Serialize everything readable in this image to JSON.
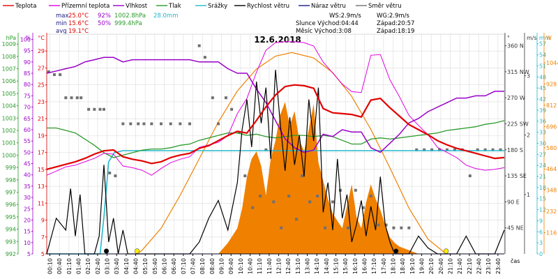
{
  "colors": {
    "temperature": "#e00000",
    "dew_point": "#e000e0",
    "humidity": "#9a00c8",
    "pressure": "#2a9a2a",
    "rain": "#22b8cc",
    "wind_speed": "#000000",
    "gust": "#1a1a8a",
    "wind_dir": "#707070",
    "solar": "#f08000",
    "grid": "#dcdcdc",
    "label_text": "#1a1a7a"
  },
  "legend": [
    {
      "id": "temp",
      "label": "Teplota",
      "color": "#e00000"
    },
    {
      "id": "dew",
      "label": "Přízemní teplota",
      "color": "#e000e0"
    },
    {
      "id": "hum",
      "label": "Vlhkost",
      "color": "#9a00c8"
    },
    {
      "id": "press",
      "label": "Tlak",
      "color": "#2a9a2a"
    },
    {
      "id": "rain",
      "label": "Srážky",
      "color": "#22b8cc"
    },
    {
      "id": "wind",
      "label": "Rychlost větru",
      "color": "#000000"
    },
    {
      "id": "gust",
      "label": "Náraz větru",
      "color": "#1a1a8a"
    },
    {
      "id": "dir",
      "label": "Směr větru",
      "color": "#707070"
    }
  ],
  "stats": {
    "max_label": "max",
    "min_label": "min",
    "avg_label": "avg",
    "max_temp": "25.0°C",
    "max_hum": "92%",
    "max_press": "1002.8hPa",
    "max_rain": "28.0mm",
    "min_temp": "15.6°C",
    "min_hum": "50%",
    "min_press": "999.4hPa",
    "avg_temp": "19.1°C"
  },
  "info": {
    "ws": "WS:2.9m/s",
    "wg": "WG:2.9m/s",
    "sun": "Slunce Východ:04:44",
    "sun_set": "Západ:20:57",
    "moon": "Měsíc  Východ:3:08",
    "moon_set": "Západ:18:19"
  },
  "title": "12.6.2018",
  "chart_data": {
    "type": "line",
    "title": "12.6.2018",
    "xlabel": "čas",
    "x_ticks": [
      "00:10",
      "00:40",
      "01:10",
      "01:40",
      "02:10",
      "02:40",
      "03:10",
      "03:40",
      "04:10",
      "04:40",
      "05:10",
      "05:40",
      "06:10",
      "06:40",
      "07:10",
      "07:40",
      "08:10",
      "08:40",
      "09:10",
      "09:40",
      "10:10",
      "10:40",
      "11:10",
      "11:40",
      "12:10",
      "12:40",
      "13:10",
      "13:40",
      "14:10",
      "14:40",
      "15:10",
      "15:40",
      "16:10",
      "16:40",
      "17:10",
      "17:40",
      "18:10",
      "18:40",
      "19:10",
      "19:40",
      "20:10",
      "20:40",
      "21:10",
      "21:40",
      "22:10",
      "22:40",
      "23:10",
      "23:40"
    ],
    "x_range_hours": [
      0,
      24
    ],
    "axes": {
      "pressure_hPa": {
        "label": "hPa",
        "ticks": [
          992,
          993,
          994,
          995,
          996,
          997,
          998,
          999,
          1000,
          1001,
          1002,
          1003,
          1004,
          1005,
          1006,
          1007,
          1008,
          1009
        ],
        "range": [
          992,
          1009.8
        ]
      },
      "humidity_pct": {
        "label": "%",
        "ticks": [
          5,
          10,
          15,
          20,
          25,
          30,
          35,
          40,
          45,
          50,
          55,
          60,
          65,
          70,
          75,
          80,
          85,
          90,
          95,
          100
        ],
        "range": [
          5,
          102.3
        ]
      },
      "temperature_C": {
        "label": "°C",
        "ticks": [
          5,
          7,
          9,
          11,
          13,
          15,
          17,
          19,
          21,
          23,
          25,
          27,
          29
        ],
        "range": [
          5,
          31
        ]
      },
      "wind_dir_deg": {
        "label": "°",
        "ticks": [
          45,
          90,
          135,
          180,
          225,
          270,
          315,
          360
        ],
        "tick_labels": [
          "45 NE",
          "90 E",
          "135 SE",
          "180 S",
          "225 SW",
          "270 W",
          "315 NW",
          "360 N"
        ],
        "range": [
          0,
          380
        ]
      },
      "wind_ms": {
        "label": "m/s",
        "ticks": [
          1,
          2,
          3
        ],
        "range": [
          0,
          3.7
        ]
      },
      "rain_mm": {
        "label": "mm",
        "ticks": [
          0,
          3,
          6,
          9,
          12,
          15,
          18,
          21,
          24,
          27,
          30,
          33,
          36,
          39,
          42,
          45,
          48,
          51,
          54,
          57
        ],
        "range": [
          0,
          59.6
        ]
      },
      "solar_W": {
        "label": "W",
        "ticks": [
          116,
          232,
          348,
          464,
          580,
          696,
          812,
          928,
          1044
        ],
        "range": [
          0,
          1200
        ]
      }
    },
    "series": [
      {
        "name": "Teplota",
        "axis": "temperature_C",
        "color": "#e00000",
        "x": [
          0,
          0.5,
          1,
          1.5,
          2,
          2.5,
          3,
          3.5,
          4,
          4.5,
          5,
          5.5,
          6,
          6.5,
          7,
          7.5,
          8,
          8.5,
          9,
          9.5,
          10,
          10.5,
          11,
          11.5,
          12,
          12.5,
          13,
          13.5,
          14,
          14.5,
          15,
          15.5,
          16,
          16.5,
          17,
          17.5,
          18,
          18.5,
          19,
          19.5,
          20,
          20.5,
          21,
          21.5,
          22,
          22.5,
          23,
          23.5,
          24
        ],
        "y": [
          15.0,
          15.3,
          15.6,
          15.9,
          16.3,
          16.8,
          17.2,
          17.3,
          16.5,
          16.2,
          16.0,
          15.7,
          15.9,
          16.4,
          16.7,
          16.9,
          17.5,
          17.8,
          18.4,
          19.0,
          19.5,
          19.3,
          20.8,
          22.4,
          23.8,
          24.8,
          25.0,
          24.9,
          24.6,
          22.2,
          21.7,
          21.6,
          21.5,
          21.2,
          23.2,
          23.4,
          22.3,
          21.3,
          20.3,
          19.7,
          19.1,
          18.4,
          17.9,
          17.5,
          17.2,
          16.9,
          16.6,
          16.3,
          16.4
        ]
      },
      {
        "name": "Přízemní teplota",
        "axis": "temperature_C",
        "color": "#e000e0",
        "x": [
          0,
          0.5,
          1,
          1.5,
          2,
          2.5,
          3,
          3.5,
          4,
          4.5,
          5,
          5.5,
          6,
          6.5,
          7,
          7.5,
          8,
          8.5,
          9,
          9.5,
          10,
          10.5,
          11,
          11.5,
          12,
          12.5,
          13,
          13.5,
          14,
          14.5,
          15,
          15.5,
          16,
          16.5,
          17,
          17.5,
          18,
          18.5,
          19,
          19.5,
          20,
          20.5,
          21,
          21.5,
          22,
          22.5,
          23,
          23.5,
          24
        ],
        "y": [
          14.3,
          14.8,
          15.3,
          15.5,
          15.9,
          16.3,
          16.9,
          16.8,
          15.4,
          15.2,
          14.9,
          14.3,
          15.1,
          15.8,
          16.2,
          16.5,
          17.6,
          17.9,
          18.2,
          19.0,
          21.6,
          23.4,
          26.5,
          29.1,
          30.0,
          30.1,
          30.1,
          30.0,
          29.6,
          27.7,
          26.4,
          25.1,
          24.2,
          24.1,
          28.5,
          28.6,
          25.6,
          23.6,
          21.4,
          20.2,
          19.1,
          17.6,
          17.0,
          16.4,
          15.5,
          15.1,
          14.9,
          15.0,
          15.2
        ]
      },
      {
        "name": "Vlhkost",
        "axis": "humidity_pct",
        "color": "#9a00c8",
        "x": [
          0,
          0.5,
          1,
          1.5,
          2,
          2.5,
          3,
          3.5,
          4,
          4.5,
          5,
          5.5,
          6,
          6.5,
          7,
          7.5,
          8,
          8.5,
          9,
          9.5,
          10,
          10.5,
          11,
          11.5,
          12,
          12.5,
          13,
          13.5,
          14,
          14.5,
          15,
          15.5,
          16,
          16.5,
          17,
          17.5,
          18,
          18.5,
          19,
          19.5,
          20,
          20.5,
          21,
          21.5,
          22,
          22.5,
          23,
          23.5,
          24
        ],
        "y": [
          85,
          86,
          87,
          88,
          90,
          91,
          92,
          92,
          90,
          91,
          91,
          91,
          91,
          91,
          91,
          91,
          90,
          90,
          90,
          87,
          85,
          85,
          78,
          72,
          64,
          56,
          52,
          50,
          51,
          58,
          57,
          60,
          59,
          59,
          52,
          50,
          54,
          58,
          63,
          65,
          68,
          70,
          72,
          74,
          74,
          75,
          75,
          77,
          77
        ]
      },
      {
        "name": "Tlak",
        "axis": "pressure_hPa",
        "color": "#2a9a2a",
        "x": [
          0,
          0.5,
          1,
          1.5,
          2,
          2.5,
          3,
          3.5,
          4,
          4.5,
          5,
          5.5,
          6,
          6.5,
          7,
          7.5,
          8,
          8.5,
          9,
          9.5,
          10,
          10.5,
          11,
          11.5,
          12,
          12.5,
          13,
          13.5,
          14,
          14.5,
          15,
          15.5,
          16,
          16.5,
          17,
          17.5,
          18,
          18.5,
          19,
          19.5,
          20,
          20.5,
          21,
          21.5,
          22,
          22.5,
          23,
          23.5,
          24
        ],
        "y": [
          1002.2,
          1002.2,
          1002.0,
          1001.8,
          1001.3,
          1000.8,
          1000.2,
          999.8,
          1000.0,
          1000.2,
          1000.4,
          1000.5,
          1000.5,
          1000.6,
          1000.8,
          1000.9,
          1001.2,
          1001.4,
          1001.6,
          1001.8,
          1001.8,
          1001.6,
          1001.7,
          1001.5,
          1001.4,
          1001.5,
          1001.6,
          1001.6,
          1001.5,
          1001.6,
          1001.5,
          1001.2,
          1000.9,
          1000.9,
          1001.3,
          1001.4,
          1001.3,
          1001.4,
          1001.5,
          1001.6,
          1001.7,
          1001.8,
          1002.0,
          1002.1,
          1002.2,
          1002.3,
          1002.5,
          1002.6,
          1002.8
        ]
      },
      {
        "name": "Srážky",
        "axis": "rain_mm",
        "color": "#22b8cc",
        "x": [
          0,
          2.8,
          3.0,
          3.25,
          3.55,
          4,
          6,
          8,
          10,
          12,
          14,
          16,
          18,
          20,
          22,
          24
        ],
        "y": [
          0,
          0,
          10,
          25,
          27.5,
          28,
          28,
          28,
          28,
          28,
          28,
          28,
          28,
          28,
          28,
          28
        ]
      },
      {
        "name": "Rychlost větru",
        "axis": "wind_ms",
        "color": "#000000",
        "x": [
          0,
          0.5,
          1,
          1.25,
          1.5,
          1.75,
          2,
          2.25,
          2.5,
          2.75,
          3,
          3.25,
          3.5,
          3.75,
          4,
          4.25,
          4.5,
          5,
          5.5,
          6,
          6.5,
          7,
          7.5,
          8,
          8.5,
          9,
          9.5,
          10,
          10.25,
          10.5,
          10.75,
          11,
          11.25,
          11.5,
          11.75,
          12,
          12.25,
          12.5,
          12.75,
          13,
          13.25,
          13.5,
          13.75,
          14,
          14.25,
          14.5,
          14.75,
          15,
          15.25,
          15.5,
          15.75,
          16,
          16.25,
          16.5,
          16.75,
          17,
          17.25,
          17.5,
          17.75,
          18,
          18.25,
          18.5,
          19,
          19.5,
          20,
          20.5,
          21,
          21.5,
          22,
          22.5,
          23,
          23.5,
          24
        ],
        "y": [
          0,
          0.6,
          0.4,
          1.1,
          0.3,
          1.0,
          0,
          0,
          0,
          0.3,
          1.5,
          0.2,
          0.6,
          0,
          0.4,
          0,
          0,
          0,
          0,
          0,
          0,
          0,
          0,
          0.2,
          0.6,
          0.9,
          0.4,
          1.2,
          2.1,
          2.6,
          1.8,
          2.9,
          2.2,
          2.8,
          1.6,
          3.1,
          2.2,
          1.4,
          2.3,
          1.5,
          2.0,
          1.3,
          2.6,
          1.9,
          2.8,
          0.7,
          1.2,
          0.4,
          1.6,
          0.6,
          1.0,
          0.2,
          0.5,
          0.9,
          0.3,
          0.8,
          0.4,
          1.3,
          0.5,
          0.2,
          0,
          0,
          0,
          0.3,
          0.1,
          0,
          0,
          0,
          0.3,
          0,
          0,
          0,
          0.4
        ]
      },
      {
        "name": "Náraz větru",
        "axis": "wind_ms",
        "color": "#1a1a8a",
        "x": [
          0,
          24
        ],
        "y": [
          0,
          0
        ]
      }
    ],
    "solar_area": {
      "axis": "solar_W",
      "x": [
        9,
        9.5,
        10,
        10.25,
        10.5,
        10.75,
        11,
        11.25,
        11.5,
        11.75,
        12,
        12.25,
        12.5,
        12.75,
        13,
        13.25,
        13.5,
        13.75,
        14,
        14.25,
        14.5,
        14.75,
        15,
        15.25,
        15.5,
        15.75,
        16,
        16.25,
        16.5,
        16.75,
        17,
        17.25,
        17.5,
        17.75,
        18,
        18.25,
        18.5,
        19,
        19.5
      ],
      "y": [
        0,
        60,
        140,
        250,
        420,
        520,
        560,
        480,
        320,
        520,
        620,
        760,
        830,
        700,
        780,
        620,
        560,
        680,
        820,
        500,
        400,
        300,
        220,
        180,
        140,
        260,
        380,
        200,
        140,
        280,
        380,
        300,
        240,
        160,
        90,
        60,
        40,
        20,
        0
      ]
    },
    "solar_theoretical": {
      "axis": "solar_W",
      "x": [
        4.74,
        5,
        6,
        7,
        8,
        9,
        10,
        11,
        12,
        12.85,
        14,
        15,
        16,
        17,
        18,
        19,
        20,
        20.95
      ],
      "y": [
        0,
        20,
        140,
        320,
        520,
        720,
        890,
        1010,
        1080,
        1100,
        1070,
        990,
        860,
        680,
        470,
        250,
        80,
        0
      ]
    },
    "wind_direction_points": {
      "axis": "wind_dir_deg",
      "x": [
        0.1,
        0.4,
        0.7,
        1.0,
        1.3,
        1.6,
        1.8,
        2.2,
        2.5,
        2.8,
        3.0,
        3.3,
        3.6,
        4.0,
        4.4,
        4.8,
        5.1,
        5.5,
        6.0,
        6.5,
        7.0,
        7.5,
        8.0,
        8.3,
        8.7,
        9.0,
        9.4,
        9.7,
        10.1,
        10.4,
        10.8,
        11.2,
        11.5,
        11.9,
        12.3,
        12.7,
        13.1,
        13.4,
        13.8,
        14.2,
        14.6,
        15.0,
        15.4,
        15.8,
        16.2,
        16.6,
        17.0,
        17.4,
        17.8,
        18.2,
        18.6,
        19.0,
        19.4,
        19.8,
        20.2,
        20.6,
        21.0,
        21.4,
        21.8,
        22.2,
        22.6,
        23.0,
        23.4,
        23.8
      ],
      "y": [
        315,
        310,
        310,
        270,
        270,
        270,
        270,
        250,
        250,
        250,
        250,
        140,
        135,
        225,
        225,
        225,
        225,
        225,
        225,
        225,
        225,
        225,
        360,
        340,
        270,
        225,
        270,
        250,
        210,
        135,
        80,
        100,
        180,
        90,
        45,
        100,
        60,
        135,
        90,
        100,
        45,
        90,
        110,
        45,
        110,
        80,
        100,
        50,
        50,
        45,
        45,
        45,
        180,
        180,
        180,
        180,
        180,
        180,
        180,
        135,
        180,
        180,
        180,
        180
      ]
    },
    "markers": [
      {
        "type": "sunrise",
        "x": 4.74,
        "label": "04:44"
      },
      {
        "type": "sunset",
        "x": 20.95,
        "label": "20:57"
      },
      {
        "type": "moonrise",
        "x": 3.13,
        "label": "3:08"
      },
      {
        "type": "moonset",
        "x": 18.32,
        "label": "18:19"
      }
    ]
  }
}
